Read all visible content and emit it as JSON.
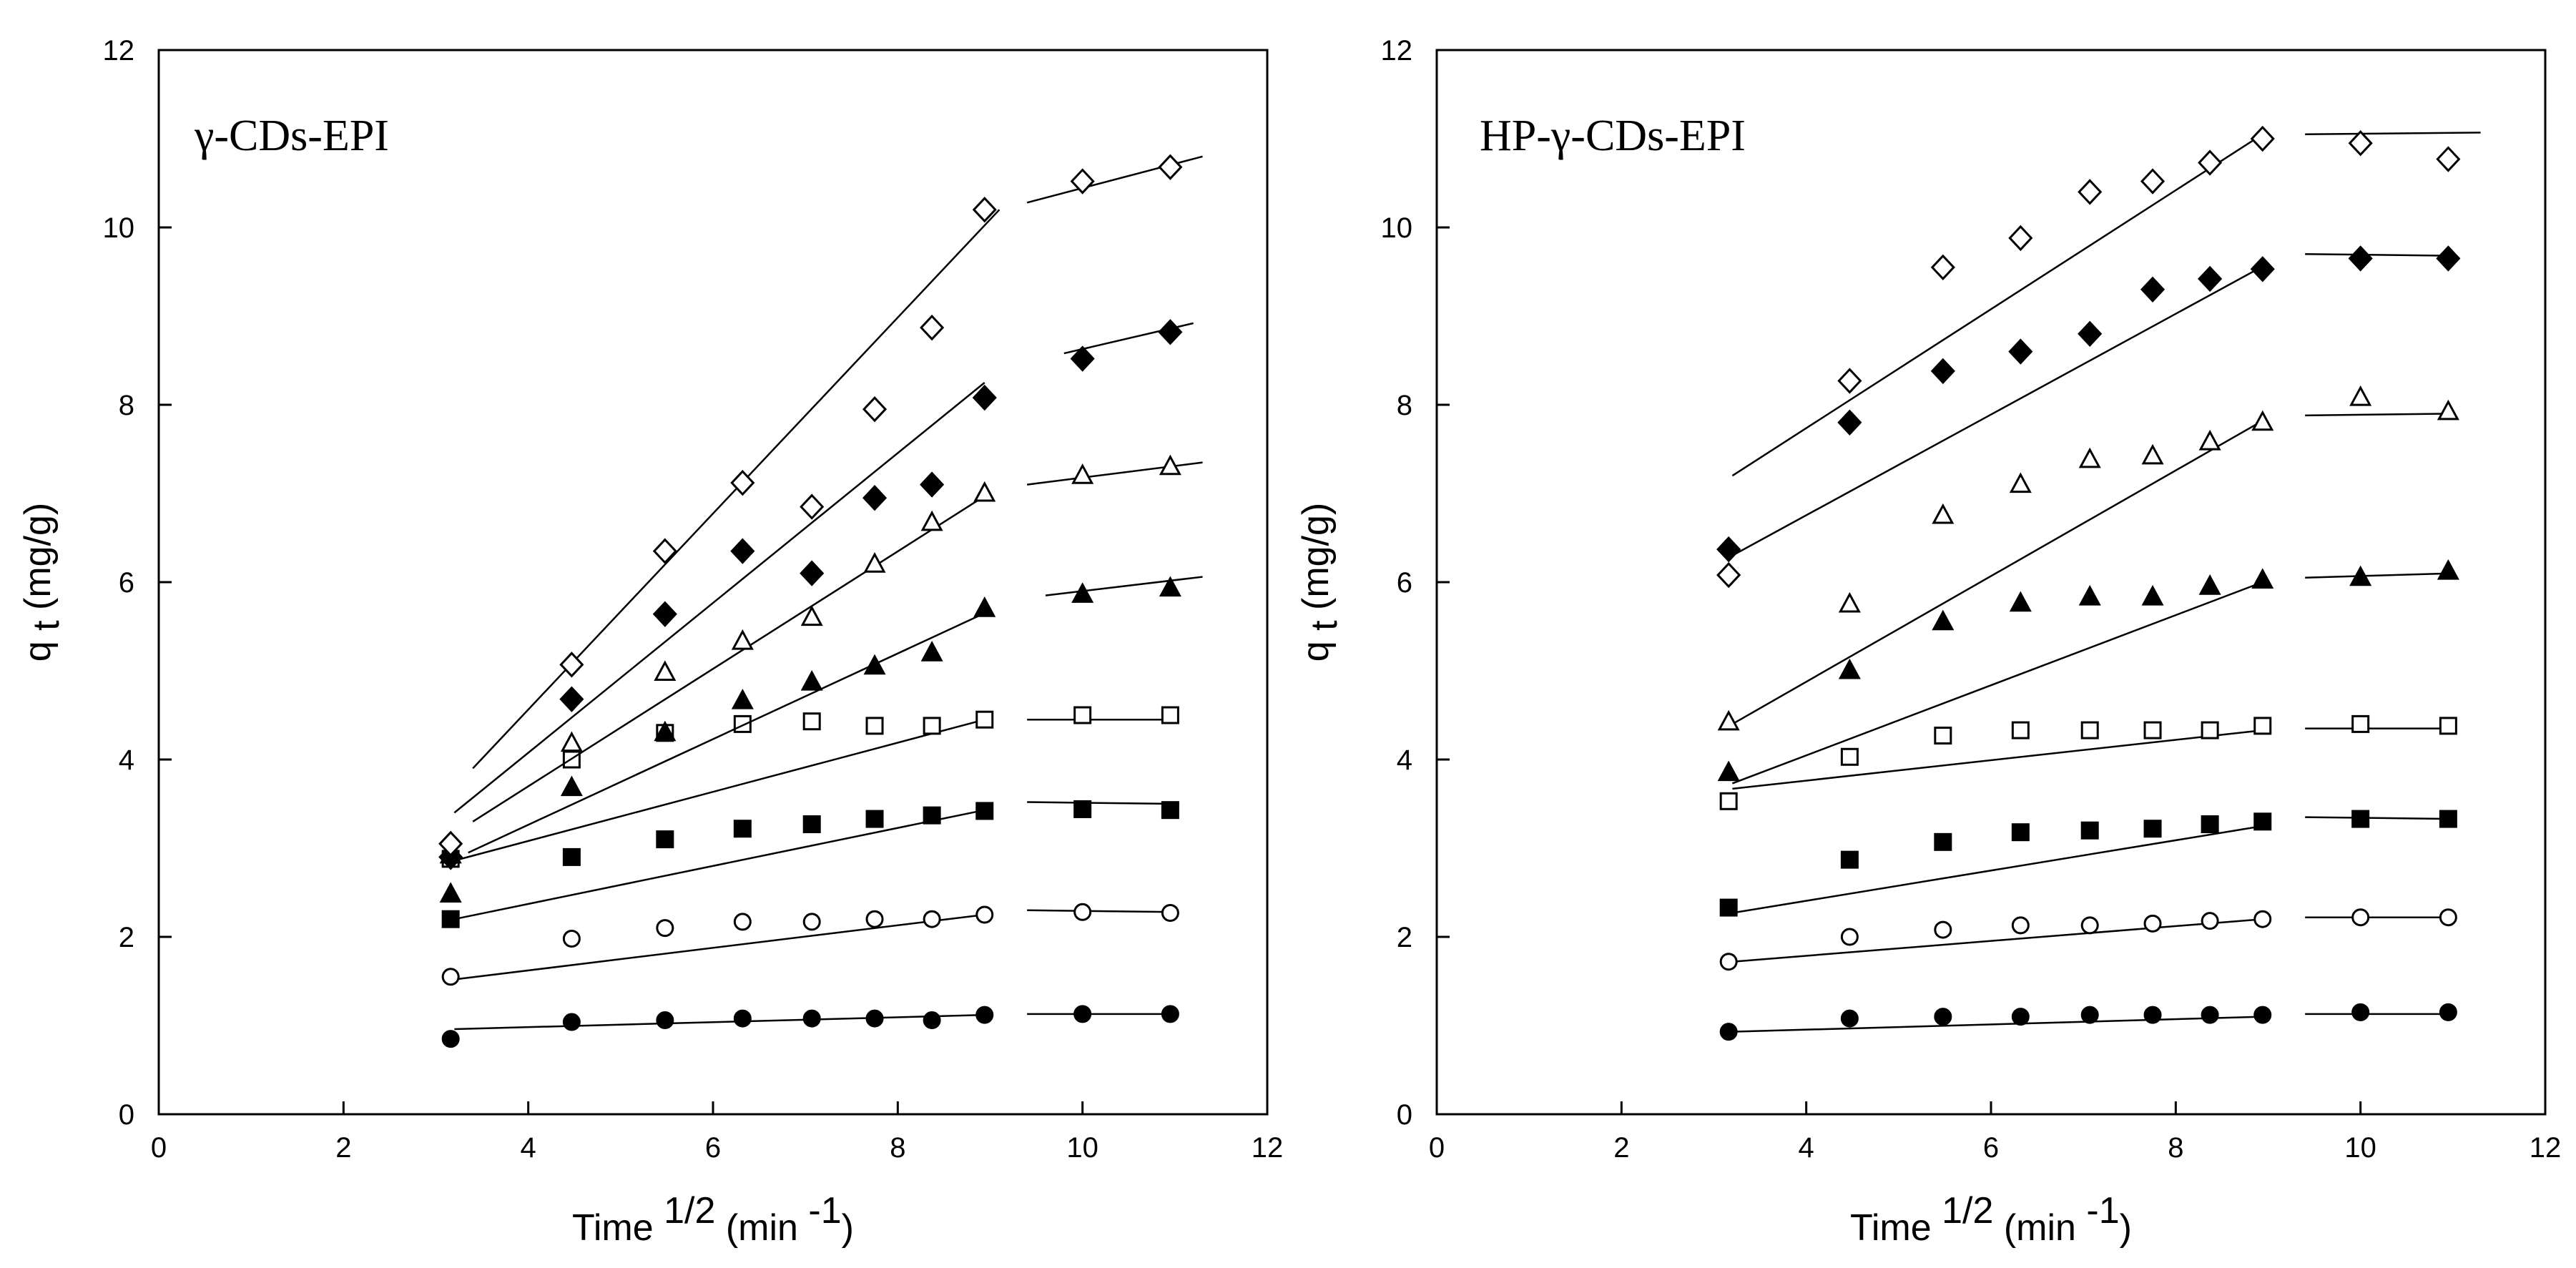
{
  "chart_data": [
    {
      "type": "scatter",
      "title": "γ-CDs-EPI",
      "xlabel": "Time",
      "xlabel_sup": "1/2",
      "xlabel_unit": "(min",
      "xlabel_unit_sup": "-1",
      "xlabel_close": ")",
      "ylabel": "q",
      "ylabel_sub": "t",
      "ylabel_unit": "(mg/g)",
      "xlim": [
        0,
        12
      ],
      "ylim": [
        0,
        12
      ],
      "xticks": [
        "0",
        "2",
        "4",
        "6",
        "8",
        "10",
        "12"
      ],
      "yticks": [
        "0",
        "2",
        "4",
        "6",
        "8",
        "10",
        "12"
      ],
      "grid": false,
      "x": [
        3.16,
        4.47,
        5.48,
        6.32,
        7.07,
        7.75,
        8.37,
        8.94,
        10.0,
        10.95
      ],
      "series": [
        {
          "name": "filled-circle",
          "marker": "circle",
          "fill": "filled",
          "y": [
            0.85,
            1.04,
            1.06,
            1.08,
            1.08,
            1.08,
            1.06,
            1.12,
            1.13,
            1.13
          ],
          "fit": [
            [
              [
                3.2,
                0.96
              ],
              [
                8.94,
                1.12
              ]
            ],
            [
              [
                9.4,
                1.13
              ],
              [
                11.0,
                1.13
              ]
            ]
          ]
        },
        {
          "name": "open-circle",
          "marker": "circle",
          "fill": "open",
          "y": [
            1.55,
            1.98,
            2.1,
            2.17,
            2.17,
            2.2,
            2.2,
            2.25,
            2.28,
            2.27
          ],
          "fit": [
            [
              [
                3.2,
                1.52
              ],
              [
                8.94,
                2.25
              ]
            ],
            [
              [
                9.4,
                2.3
              ],
              [
                11.0,
                2.28
              ]
            ]
          ]
        },
        {
          "name": "filled-square",
          "marker": "square",
          "fill": "filled",
          "y": [
            2.2,
            2.9,
            3.1,
            3.22,
            3.27,
            3.33,
            3.37,
            3.42,
            3.44,
            3.43
          ],
          "fit": [
            [
              [
                3.2,
                2.2
              ],
              [
                8.94,
                3.43
              ]
            ],
            [
              [
                9.4,
                3.52
              ],
              [
                11.0,
                3.5
              ]
            ]
          ]
        },
        {
          "name": "open-square",
          "marker": "square",
          "fill": "open",
          "y": [
            2.88,
            4.0,
            4.3,
            4.4,
            4.43,
            4.38,
            4.38,
            4.45,
            4.5,
            4.5
          ],
          "fit": [
            [
              [
                3.2,
                2.86
              ],
              [
                8.94,
                4.45
              ]
            ],
            [
              [
                9.4,
                4.45
              ],
              [
                11.0,
                4.45
              ]
            ]
          ]
        },
        {
          "name": "filled-triangle",
          "marker": "triangle",
          "fill": "filled",
          "y": [
            2.48,
            3.68,
            4.3,
            4.66,
            4.87,
            5.05,
            5.2,
            5.7,
            5.86,
            5.93
          ],
          "fit": [
            [
              [
                3.35,
                2.95
              ],
              [
                8.94,
                5.65
              ]
            ],
            [
              [
                9.6,
                5.85
              ],
              [
                11.3,
                6.06
              ]
            ]
          ]
        },
        {
          "name": "open-triangle",
          "marker": "triangle",
          "fill": "open",
          "y": [
            2.92,
            4.18,
            4.98,
            5.33,
            5.6,
            6.2,
            6.67,
            7.0,
            7.2,
            7.3
          ],
          "fit": [
            [
              [
                3.4,
                3.3
              ],
              [
                8.94,
                6.97
              ]
            ],
            [
              [
                9.4,
                7.1
              ],
              [
                11.3,
                7.35
              ]
            ]
          ]
        },
        {
          "name": "filled-diamond",
          "marker": "diamond",
          "fill": "filled",
          "y": [
            2.9,
            4.68,
            5.64,
            6.35,
            6.1,
            6.95,
            7.1,
            8.08,
            8.52,
            8.82
          ],
          "fit": [
            [
              [
                3.2,
                3.4
              ],
              [
                8.94,
                8.25
              ]
            ],
            [
              [
                9.8,
                8.58
              ],
              [
                11.2,
                8.92
              ]
            ]
          ]
        },
        {
          "name": "open-diamond",
          "marker": "diamond",
          "fill": "open",
          "y": [
            3.05,
            5.07,
            6.35,
            7.12,
            6.85,
            7.95,
            8.87,
            10.2,
            10.52,
            10.68
          ],
          "fit": [
            [
              [
                3.4,
                3.9
              ],
              [
                9.1,
                10.2
              ]
            ],
            [
              [
                9.4,
                10.28
              ],
              [
                11.3,
                10.8
              ]
            ]
          ]
        }
      ]
    },
    {
      "type": "scatter",
      "title": "HP-γ-CDs-EPI",
      "xlabel": "Time",
      "xlabel_sup": "1/2",
      "xlabel_unit": "(min",
      "xlabel_unit_sup": "-1",
      "xlabel_close": ")",
      "ylabel": "q",
      "ylabel_sub": "t",
      "ylabel_unit": "(mg/g)",
      "xlim": [
        0,
        12
      ],
      "ylim": [
        0,
        12
      ],
      "xticks": [
        "0",
        "2",
        "4",
        "6",
        "8",
        "10",
        "12"
      ],
      "yticks": [
        "0",
        "2",
        "4",
        "6",
        "8",
        "10",
        "12"
      ],
      "grid": false,
      "x": [
        3.16,
        4.47,
        5.48,
        6.32,
        7.07,
        7.75,
        8.37,
        8.94,
        10.0,
        10.95
      ],
      "series": [
        {
          "name": "filled-circle",
          "marker": "circle",
          "fill": "filled",
          "y": [
            0.93,
            1.08,
            1.1,
            1.1,
            1.12,
            1.12,
            1.12,
            1.12,
            1.15,
            1.15
          ],
          "fit": [
            [
              [
                3.2,
                0.93
              ],
              [
                8.94,
                1.1
              ]
            ],
            [
              [
                9.4,
                1.13
              ],
              [
                11.0,
                1.13
              ]
            ]
          ]
        },
        {
          "name": "open-circle",
          "marker": "circle",
          "fill": "open",
          "y": [
            1.72,
            2.0,
            2.08,
            2.13,
            2.13,
            2.15,
            2.18,
            2.2,
            2.22,
            2.22
          ],
          "fit": [
            [
              [
                3.2,
                1.72
              ],
              [
                8.94,
                2.2
              ]
            ],
            [
              [
                9.4,
                2.22
              ],
              [
                11.0,
                2.22
              ]
            ]
          ]
        },
        {
          "name": "filled-square",
          "marker": "square",
          "fill": "filled",
          "y": [
            2.33,
            2.87,
            3.07,
            3.18,
            3.2,
            3.22,
            3.27,
            3.3,
            3.33,
            3.33
          ],
          "fit": [
            [
              [
                3.2,
                2.27
              ],
              [
                8.94,
                3.25
              ]
            ],
            [
              [
                9.4,
                3.35
              ],
              [
                11.0,
                3.33
              ]
            ]
          ]
        },
        {
          "name": "open-square",
          "marker": "square",
          "fill": "open",
          "y": [
            3.53,
            4.03,
            4.27,
            4.33,
            4.33,
            4.33,
            4.33,
            4.38,
            4.4,
            4.38
          ],
          "fit": [
            [
              [
                3.2,
                3.67
              ],
              [
                8.94,
                4.33
              ]
            ],
            [
              [
                9.4,
                4.35
              ],
              [
                11.0,
                4.35
              ]
            ]
          ]
        },
        {
          "name": "filled-triangle",
          "marker": "triangle",
          "fill": "filled",
          "y": [
            3.85,
            5.0,
            5.55,
            5.76,
            5.83,
            5.83,
            5.95,
            6.02,
            6.05,
            6.12
          ],
          "fit": [
            [
              [
                3.2,
                3.73
              ],
              [
                8.94,
                6.0
              ]
            ],
            [
              [
                9.4,
                6.05
              ],
              [
                11.0,
                6.1
              ]
            ]
          ]
        },
        {
          "name": "open-triangle",
          "marker": "triangle",
          "fill": "open",
          "y": [
            4.42,
            5.75,
            6.75,
            7.1,
            7.38,
            7.42,
            7.58,
            7.8,
            8.08,
            7.92
          ],
          "fit": [
            [
              [
                3.2,
                4.4
              ],
              [
                8.94,
                7.82
              ]
            ],
            [
              [
                9.4,
                7.88
              ],
              [
                11.0,
                7.9
              ]
            ]
          ]
        },
        {
          "name": "filled-diamond",
          "marker": "diamond",
          "fill": "filled",
          "y": [
            6.37,
            7.8,
            8.38,
            8.6,
            8.8,
            9.3,
            9.42,
            9.53,
            9.65,
            9.65
          ],
          "fit": [
            [
              [
                3.2,
                6.3
              ],
              [
                8.94,
                9.56
              ]
            ],
            [
              [
                9.4,
                9.7
              ],
              [
                11.0,
                9.68
              ]
            ]
          ]
        },
        {
          "name": "open-diamond",
          "marker": "diamond",
          "fill": "open",
          "y": [
            6.08,
            8.27,
            9.55,
            9.88,
            10.4,
            10.52,
            10.73,
            11.0,
            10.95,
            10.77
          ],
          "fit": [
            [
              [
                3.2,
                7.2
              ],
              [
                8.94,
                11.05
              ]
            ],
            [
              [
                9.4,
                11.05
              ],
              [
                11.3,
                11.07
              ]
            ]
          ]
        }
      ]
    }
  ]
}
